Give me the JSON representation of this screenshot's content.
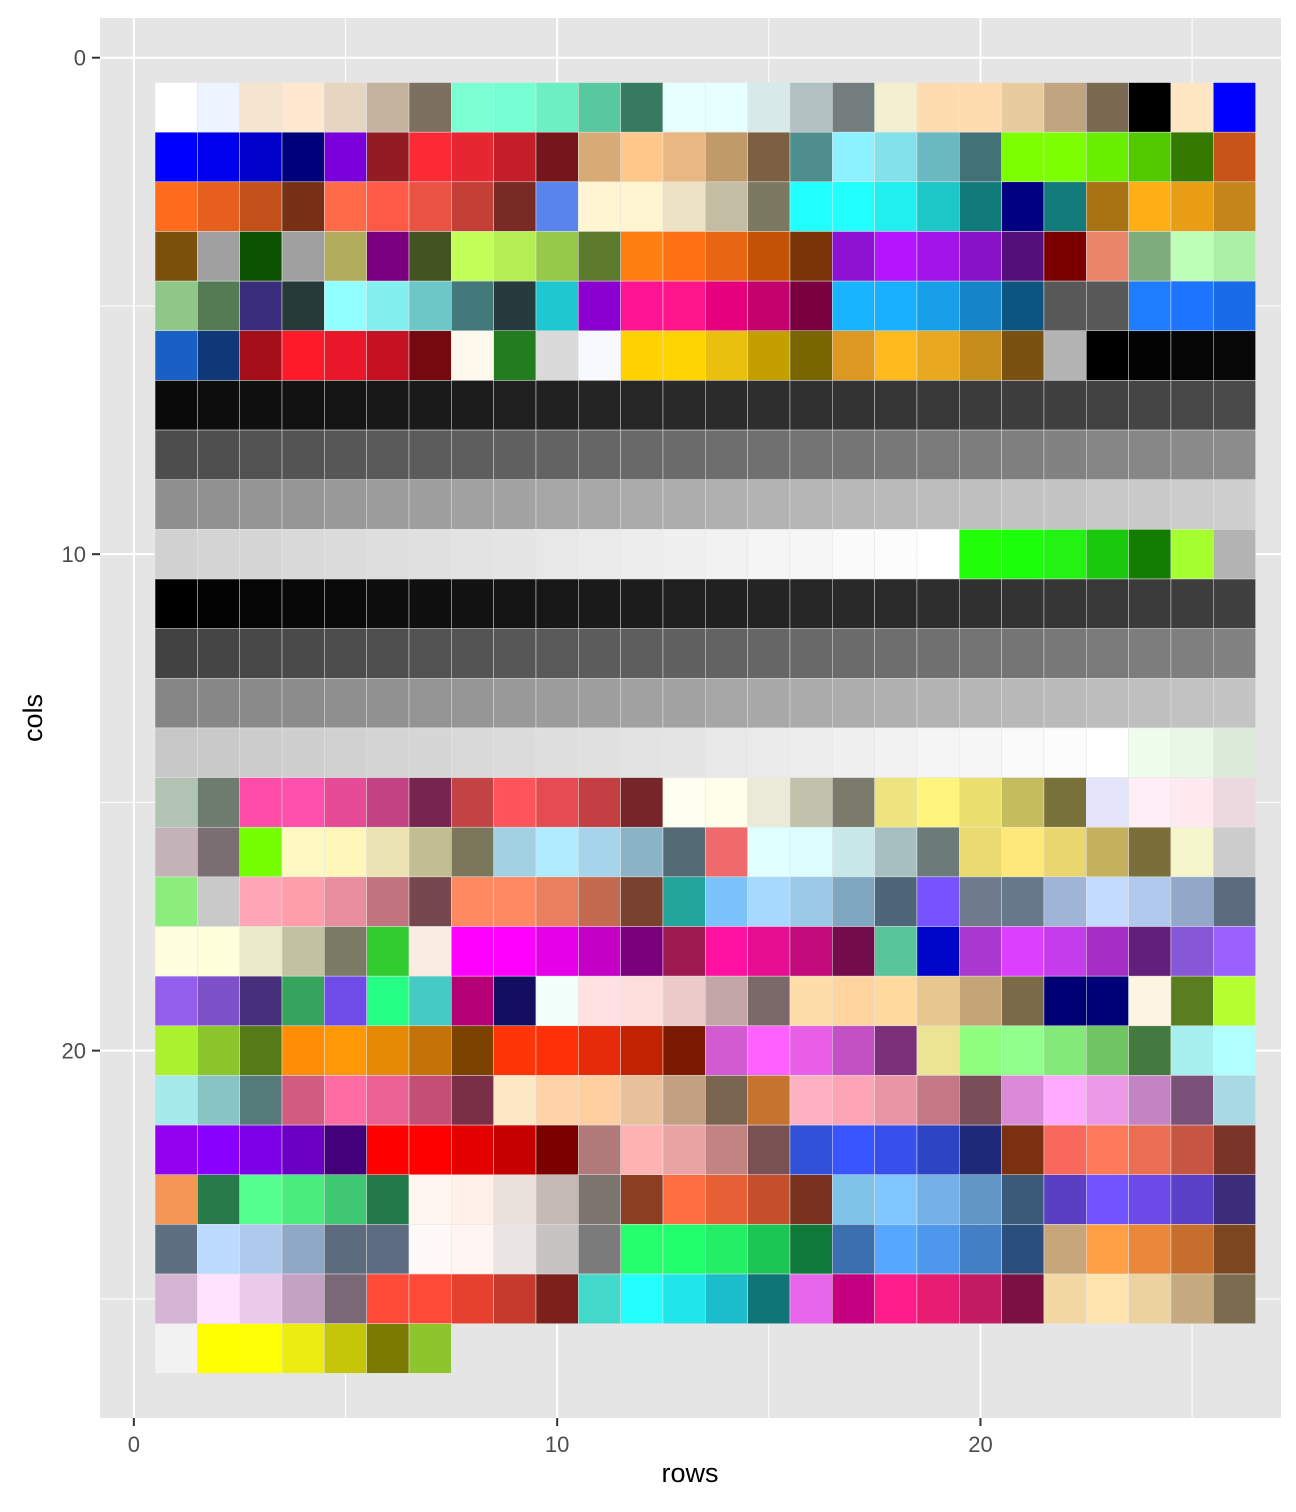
{
  "chart_data": {
    "type": "heatmap",
    "title": "",
    "xlabel": "rows",
    "ylabel": "cols",
    "xlim": [
      -0.8,
      27.1
    ],
    "ylim": [
      27.4,
      -0.8
    ],
    "y_reversed": true,
    "x_ticks": [
      0,
      10,
      20
    ],
    "y_ticks": [
      0,
      10,
      20
    ],
    "grid": true,
    "legend": "none",
    "panel_background": "#e5e5e5",
    "grid_color": "#ffffff",
    "tiles": [
      [
        "#ffffff",
        "#ecf4ff",
        "#f5e4ce",
        "#ffe8d0",
        "#e6d6c1",
        "#c4b39f",
        "#7c6f60",
        "#7bffd3",
        "#76ffd2",
        "#6cf0c3",
        "#57c89f",
        "#367b5f",
        "#e7ffff",
        "#e7ffff",
        "#d7e9e9",
        "#b1c0c0",
        "#737d7d",
        "#f3f0cf",
        "#ffdcb0",
        "#ffdcaf",
        "#e9cba0",
        "#c1a580",
        "#7b6a52",
        "#000000",
        "#ffe6c2",
        "#0000ff"
      ],
      [
        "#0000ff",
        "#0000ef",
        "#0000cb",
        "#00007a",
        "#7a00dc",
        "#921c21",
        "#fd2a35",
        "#e62630",
        "#c41f28",
        "#76151a",
        "#d8aa75",
        "#ffc78a",
        "#e9b781",
        "#c19a69",
        "#7b6041",
        "#4f8e8e",
        "#8cf2ff",
        "#83e1eb",
        "#6ab8c0",
        "#427277",
        "#7cff00",
        "#7cff00",
        "#68ef00",
        "#53c900",
        "#357a00",
        "#c85418"
      ],
      [
        "#ff6b1c",
        "#e65f1d",
        "#c4511a",
        "#763013",
        "#ff6a49",
        "#ff5a47",
        "#e85343",
        "#c44036",
        "#782a25",
        "#5983ed",
        "#fff5d2",
        "#fff5d1",
        "#ebe3c3",
        "#c3bda4",
        "#7b7962",
        "#21ffff",
        "#21ffff",
        "#21eeee",
        "#1dc7c8",
        "#117b7b",
        "#000080",
        "#127b7b",
        "#a87413",
        "#ffaf14",
        "#e89d14",
        "#c4861a"
      ],
      [
        "#7a500b",
        "#a0a0a0",
        "#0c5200",
        "#a0a0a0",
        "#b2ad5c",
        "#7a0080",
        "#435321",
        "#c3ff59",
        "#b3ef52",
        "#96c849",
        "#5d7a2d",
        "#ff7f11",
        "#ff7112",
        "#e86514",
        "#c35207",
        "#7a3305",
        "#8f12d2",
        "#b414ff",
        "#a314eb",
        "#8913c7",
        "#53107a",
        "#7a0000",
        "#e88569",
        "#7ead7c",
        "#bdffb6",
        "#abefa4"
      ],
      [
        "#8fc789",
        "#557b55",
        "#3a2d7b",
        "#263a3a",
        "#91ffff",
        "#84efef",
        "#6ec7c7",
        "#43797a",
        "#263b3c",
        "#1ec8d1",
        "#8a00d1",
        "#ff1393",
        "#ff1589",
        "#e6007e",
        "#c4006c",
        "#7a0040",
        "#19b4ff",
        "#18b0ff",
        "#17a0e9",
        "#1585c7",
        "#0c5580",
        "#585858",
        "#585858",
        "#1e7cff",
        "#1d74ff",
        "#1a6be8"
      ],
      [
        "#185fc6",
        "#0f3879",
        "#a40f19",
        "#ff1a29",
        "#e8172a",
        "#c41223",
        "#76090f",
        "#fff8ec",
        "#217d1e",
        "#dadada",
        "#f8f8ff",
        "#ffd200",
        "#ffd400",
        "#e9c00e",
        "#c3a000",
        "#7a6600",
        "#dc9820",
        "#ffb91d",
        "#e8a820",
        "#c48c1b",
        "#7a5110",
        "#b3b3b3",
        "#000000",
        "#030303",
        "#050505",
        "#080808"
      ],
      [
        "#0a0a0a",
        "#0d0d0d",
        "#0f0f0f",
        "#121212",
        "#141414",
        "#171717",
        "#1a1a1a",
        "#1c1c1c",
        "#1f1f1f",
        "#212121",
        "#242424",
        "#262626",
        "#292929",
        "#2b2b2b",
        "#2e2e2e",
        "#303030",
        "#333333",
        "#363636",
        "#383838",
        "#3b3b3b",
        "#3d3d3d",
        "#404040",
        "#424242",
        "#454545",
        "#474747",
        "#4a4a4a"
      ],
      [
        "#4d4d4d",
        "#4f4f4f",
        "#525252",
        "#545454",
        "#575757",
        "#595959",
        "#5c5c5c",
        "#5e5e5e",
        "#616161",
        "#636363",
        "#666666",
        "#696969",
        "#6b6b6b",
        "#6e6e6e",
        "#707070",
        "#737373",
        "#757575",
        "#787878",
        "#7a7a7a",
        "#7d7d7d",
        "#7f7f7f",
        "#828282",
        "#858585",
        "#878787",
        "#8a8a8a",
        "#8c8c8c"
      ],
      [
        "#8f8f8f",
        "#919191",
        "#949494",
        "#969696",
        "#999999",
        "#9c9c9c",
        "#9e9e9e",
        "#a1a1a1",
        "#a3a3a3",
        "#a6a6a6",
        "#a8a8a8",
        "#ababab",
        "#adadad",
        "#b0b0b0",
        "#b3b3b3",
        "#b5b5b5",
        "#b8b8b8",
        "#bababa",
        "#bdbdbd",
        "#bfbfbf",
        "#c2c2c2",
        "#c4c4c4",
        "#c7c7c7",
        "#c9c9c9",
        "#cccccc",
        "#cfcfcf"
      ],
      [
        "#d1d1d1",
        "#d4d4d4",
        "#d6d6d6",
        "#d9d9d9",
        "#dbdbdb",
        "#dedede",
        "#e0e0e0",
        "#e3e3e3",
        "#e5e5e5",
        "#e8e8e8",
        "#ebebeb",
        "#ededed",
        "#f0f0f0",
        "#f2f2f2",
        "#f5f5f5",
        "#f7f7f7",
        "#fafafa",
        "#fcfcfc",
        "#ffffff",
        "#20ff08",
        "#1cff0b",
        "#22f313",
        "#1ac90b",
        "#137d01",
        "#a5ff2e",
        "#b3b3b3"
      ],
      [
        "#000000",
        "#030303",
        "#050505",
        "#080808",
        "#0a0a0a",
        "#0d0d0d",
        "#0f0f0f",
        "#121212",
        "#141414",
        "#171717",
        "#1a1a1a",
        "#1c1c1c",
        "#1f1f1f",
        "#212121",
        "#242424",
        "#262626",
        "#292929",
        "#2b2b2b",
        "#2e2e2e",
        "#303030",
        "#333333",
        "#363636",
        "#383838",
        "#3b3b3b",
        "#3d3d3d",
        "#404040"
      ],
      [
        "#424242",
        "#454545",
        "#474747",
        "#4a4a4a",
        "#4d4d4d",
        "#4f4f4f",
        "#525252",
        "#545454",
        "#575757",
        "#595959",
        "#5c5c5c",
        "#5e5e5e",
        "#616161",
        "#636363",
        "#666666",
        "#696969",
        "#6b6b6b",
        "#6e6e6e",
        "#707070",
        "#737373",
        "#757575",
        "#787878",
        "#7a7a7a",
        "#7d7d7d",
        "#7f7f7f",
        "#828282"
      ],
      [
        "#858585",
        "#878787",
        "#8a8a8a",
        "#8c8c8c",
        "#8f8f8f",
        "#919191",
        "#949494",
        "#969696",
        "#999999",
        "#9c9c9c",
        "#9e9e9e",
        "#a1a1a1",
        "#a3a3a3",
        "#a6a6a6",
        "#a8a8a8",
        "#ababab",
        "#adadad",
        "#b0b0b0",
        "#b3b3b3",
        "#b5b5b5",
        "#b8b8b8",
        "#bababa",
        "#bdbdbd",
        "#bfbfbf",
        "#c2c2c2",
        "#c4c4c4"
      ],
      [
        "#c7c7c7",
        "#c9c9c9",
        "#cccccc",
        "#cfcfcf",
        "#d1d1d1",
        "#d4d4d4",
        "#d6d6d6",
        "#d9d9d9",
        "#dbdbdb",
        "#dedede",
        "#e0e0e0",
        "#e3e3e3",
        "#e5e5e5",
        "#e8e8e8",
        "#ebebeb",
        "#ededed",
        "#f0f0f0",
        "#f2f2f2",
        "#f5f5f5",
        "#f7f7f7",
        "#fafafa",
        "#fcfcfc",
        "#ffffff",
        "#eefdec",
        "#e9f7e6",
        "#dcebd9"
      ],
      [
        "#b1c3b2",
        "#6e7b6f",
        "#ff4ca9",
        "#ff50ad",
        "#e54b96",
        "#c34283",
        "#762450",
        "#c34344",
        "#ff5459",
        "#e54b52",
        "#c33f44",
        "#762628",
        "#fffff0",
        "#fffeea",
        "#ebead9",
        "#c2c1ab",
        "#7c7a6b",
        "#eee47e",
        "#fff57d",
        "#ebe06f",
        "#c5bc5e",
        "#79713a",
        "#e4e4fb",
        "#ffeef5",
        "#ffeaf0",
        "#ecd9df"
      ],
      [
        "#c3b3b9",
        "#7b6e73",
        "#76ff03",
        "#fff9c1",
        "#fff7ba",
        "#ebe4b2",
        "#c3bd92",
        "#7a775a",
        "#a3d1e4",
        "#b0ecff",
        "#a6d4ea",
        "#8ab3c6",
        "#546b76",
        "#f06a6c",
        "#e0ffff",
        "#dcfefe",
        "#c8e7e8",
        "#a8bfc1",
        "#6a7b79",
        "#e9da6f",
        "#ffe87a",
        "#e9d66f",
        "#c5b15e",
        "#7a6f39",
        "#f6f6cd",
        "#cccccc"
      ],
      [
        "#8ced7d",
        "#c9c9c9",
        "#ffa6b6",
        "#ff9dab",
        "#e98e9c",
        "#c1747f",
        "#77474f",
        "#ff8a61",
        "#ff8963",
        "#e8805f",
        "#c46a50",
        "#774230",
        "#22a59a",
        "#7bc2fa",
        "#a7d8fe",
        "#9bc9e8",
        "#80a7c2",
        "#4e6679",
        "#7653ff",
        "#6e7b8d",
        "#67788b",
        "#a0b4d8",
        "#c2dbff",
        "#b1c9ec",
        "#93a7c8",
        "#5d6b7e"
      ],
      [
        "#ffffe0",
        "#ffffdc",
        "#ebebc9",
        "#c2c2a0",
        "#7b7b65",
        "#30cc30",
        "#f9ece0",
        "#ff00ff",
        "#ff00fe",
        "#e600e9",
        "#c500c6",
        "#7a007c",
        "#9c1a50",
        "#ff12a1",
        "#e80e91",
        "#c30a7b",
        "#730c4b",
        "#58c59b",
        "#0006c9",
        "#ab39d1",
        "#dd3fff",
        "#c43ceb",
        "#a62ec7",
        "#621f7c",
        "#8657d6",
        "#9b61ff"
      ],
      [
        "#925eeb",
        "#7d52c9",
        "#482f7b",
        "#36a45d",
        "#6f4ce8",
        "#26ff86",
        "#45cbc4",
        "#b40074",
        "#130e60",
        "#f3fffa",
        "#ffe1e1",
        "#ffdedd",
        "#ebcac9",
        "#c3a6a6",
        "#7b6868",
        "#ffdda9",
        "#ffd49f",
        "#ffd99e",
        "#e8c68f",
        "#c3a577",
        "#7a6a47",
        "#000074",
        "#000077",
        "#fdf4e1",
        "#5a7e1f",
        "#b5ff31"
      ],
      [
        "#abf12e",
        "#8bc52c",
        "#557b18",
        "#ff8e06",
        "#ff9806",
        "#e68a06",
        "#c47308",
        "#7b4200",
        "#ff3508",
        "#ff2f06",
        "#e52b09",
        "#c32202",
        "#7b1a01",
        "#d35bd2",
        "#ff62ff",
        "#e95fe8",
        "#c451c4",
        "#7b3179",
        "#ebe493",
        "#90ff80",
        "#90ff8c",
        "#83ea79",
        "#6fc562",
        "#437a40",
        "#a7eeee",
        "#b1ffff"
      ],
      [
        "#a5ebeb",
        "#89c4c5",
        "#547b79",
        "#d15c82",
        "#ff6ba3",
        "#ea6294",
        "#c34f76",
        "#7a2f47",
        "#fde8c6",
        "#ffd2a7",
        "#ffcf9f",
        "#e8c09a",
        "#c4a083",
        "#7a6550",
        "#c6732f",
        "#ffb1c4",
        "#ffa4b6",
        "#e995a6",
        "#c47785",
        "#7a4e58",
        "#da8ad6",
        "#ffaaff",
        "#ec9ae8",
        "#c484c3",
        "#7b5079",
        "#a8dae4"
      ],
      [
        "#9300ef",
        "#8a00ff",
        "#7e00ea",
        "#6b00c4",
        "#440079",
        "#ff0000",
        "#ff0000",
        "#e50000",
        "#c60000",
        "#7b0000",
        "#b07a7a",
        "#ffb2b2",
        "#e9a4a4",
        "#c48383",
        "#7a5152",
        "#3051d8",
        "#3855ff",
        "#3750ec",
        "#2d44c4",
        "#1f297a",
        "#7b300f",
        "#f8685c",
        "#ff7a5a",
        "#ea6e52",
        "#c65641",
        "#7a3528"
      ],
      [
        "#f49655",
        "#267b48",
        "#54ff8f",
        "#4bec7e",
        "#3fc771",
        "#24794a",
        "#fff6f0",
        "#fff1e9",
        "#eae2da",
        "#c5b9b4",
        "#7c746d",
        "#8c3e22",
        "#ff6d41",
        "#e65f35",
        "#c54e2c",
        "#78321f",
        "#80c3e9",
        "#80c7ff",
        "#74b1e9",
        "#6398c6",
        "#3b5978",
        "#5a3ec4",
        "#7154ff",
        "#6b4ae9",
        "#5840c7",
        "#3c2d7b"
      ],
      [
        "#5d6f80",
        "#bcdbff",
        "#aec9ec",
        "#8ea8c5",
        "#5c6b7d",
        "#5d6c80",
        "#fffaf9",
        "#fff5f2",
        "#eae5e3",
        "#c6c3c1",
        "#7b7b7b",
        "#24ff6d",
        "#22ff6d",
        "#23ee65",
        "#1bc655",
        "#0e7939",
        "#3b6fad",
        "#56a7ff",
        "#4d98ed",
        "#427fc4",
        "#2a4e7d",
        "#c8a67b",
        "#ff9e42",
        "#e9883b",
        "#c66e2e",
        "#7b4620"
      ],
      [
        "#d5b5d4",
        "#ffe2fe",
        "#ebc9eb",
        "#c4a2c3",
        "#7b6877",
        "#ff4b37",
        "#ff4a38",
        "#e6412f",
        "#c43a2c",
        "#7b201a",
        "#42d9ca",
        "#23feff",
        "#20e5ea",
        "#1abdc9",
        "#0f7576",
        "#e765ea",
        "#c40080",
        "#ff1d8c",
        "#e71d74",
        "#c31c63",
        "#7a1142",
        "#f4d8a4",
        "#ffe4ad",
        "#ebd29f",
        "#c4aa7e",
        "#7b6c50"
      ],
      [
        "#f2f2f2",
        "#ffff00",
        "#ffff05",
        "#ecec12",
        "#c6c609",
        "#7b7b02",
        "#8dc52b"
      ]
    ]
  }
}
